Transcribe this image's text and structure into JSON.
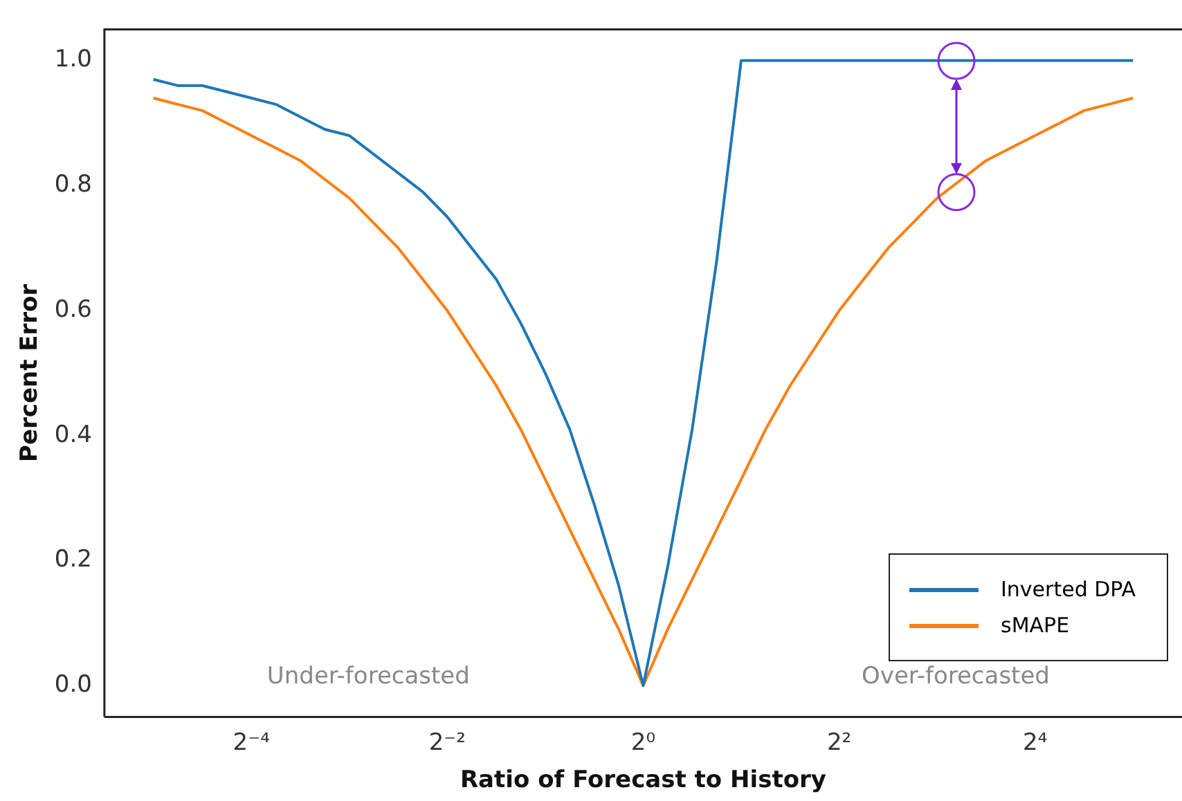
{
  "chart_data": {
    "type": "line",
    "xlabel": "Ratio of Forecast to History",
    "ylabel": "Percent Error",
    "log": "x",
    "x": [
      0.03125,
      0.03716,
      0.04419,
      0.05256,
      0.0625,
      0.07433,
      0.08839,
      0.1051,
      0.125,
      0.1487,
      0.1768,
      0.2102,
      0.25,
      0.2973,
      0.3536,
      0.4204,
      0.5,
      0.5946,
      0.7071,
      0.8409,
      1,
      1.189,
      1.414,
      1.682,
      2,
      2.378,
      2.828,
      3.364,
      4,
      4.757,
      5.657,
      6.727,
      8,
      9.514,
      11.31,
      13.45,
      16,
      19.03,
      22.63,
      26.91,
      32
    ],
    "series": [
      {
        "name": "Inverted DPA",
        "color": "#1f77b4",
        "values": [
          0.97,
          0.96,
          0.96,
          0.95,
          0.94,
          0.93,
          0.91,
          0.89,
          0.88,
          0.85,
          0.82,
          0.79,
          0.75,
          0.7,
          0.65,
          0.58,
          0.5,
          0.41,
          0.29,
          0.16,
          0.0,
          0.19,
          0.41,
          0.68,
          1.0,
          1.0,
          1.0,
          1.0,
          1.0,
          1.0,
          1.0,
          1.0,
          1.0,
          1.0,
          1.0,
          1.0,
          1.0,
          1.0,
          1.0,
          1.0,
          1.0
        ]
      },
      {
        "name": "sMAPE",
        "color": "#ff7f0e",
        "values": [
          0.94,
          0.93,
          0.92,
          0.9,
          0.88,
          0.86,
          0.84,
          0.81,
          0.78,
          0.74,
          0.7,
          0.65,
          0.6,
          0.54,
          0.48,
          0.41,
          0.33,
          0.25,
          0.17,
          0.09,
          0.0,
          0.09,
          0.17,
          0.25,
          0.33,
          0.41,
          0.48,
          0.54,
          0.6,
          0.65,
          0.7,
          0.74,
          0.78,
          0.81,
          0.84,
          0.86,
          0.88,
          0.9,
          0.92,
          0.93,
          0.94
        ]
      }
    ],
    "xlim": [
      0.0221,
      45.25
    ],
    "xticks": [
      {
        "value": 0.0625,
        "label": "2⁻⁴"
      },
      {
        "value": 0.25,
        "label": "2⁻²"
      },
      {
        "value": 1,
        "label": "2⁰"
      },
      {
        "value": 4,
        "label": "2²"
      },
      {
        "value": 16,
        "label": "2⁴"
      }
    ],
    "ylim": [
      -0.05,
      1.05
    ],
    "yticks": [
      {
        "value": 0,
        "label": "0.0"
      },
      {
        "value": 0.2,
        "label": "0.2"
      },
      {
        "value": 0.4,
        "label": "0.4"
      },
      {
        "value": 0.6,
        "label": "0.6"
      },
      {
        "value": 0.8,
        "label": "0.8"
      },
      {
        "value": 1,
        "label": "1.0"
      }
    ],
    "grid": false,
    "legend": "bottom right",
    "marker": "none",
    "line_style": "solid",
    "annotations": [
      "Under-forecasted",
      "Over-forecasted"
    ]
  }
}
